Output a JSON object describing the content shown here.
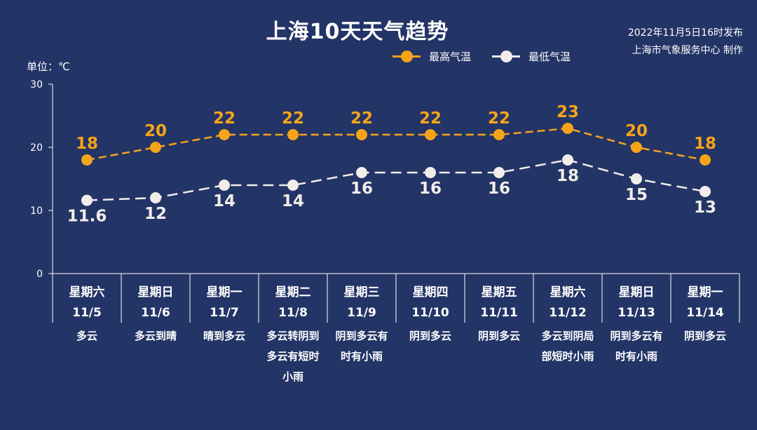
{
  "header": {
    "title": "上海10天天气趋势",
    "publish_line1": "2022年11月5日16时发布",
    "publish_line2": "上海市气象服务中心 制作"
  },
  "colors": {
    "high": "#F5A41A",
    "low": "#F2EDEB",
    "background": "#233466"
  },
  "chart_data": {
    "type": "line",
    "unit_label": "单位：℃",
    "ylim": [
      0,
      30
    ],
    "yticks": [
      "0",
      "10",
      "20",
      "30"
    ],
    "legend_position": "top-center",
    "categories": [
      {
        "day": "星期六",
        "date": "11/5",
        "weather": [
          "多云"
        ]
      },
      {
        "day": "星期日",
        "date": "11/6",
        "weather": [
          "多云到晴"
        ]
      },
      {
        "day": "星期一",
        "date": "11/7",
        "weather": [
          "晴到多云"
        ]
      },
      {
        "day": "星期二",
        "date": "11/8",
        "weather": [
          "多云转阴到",
          "多云有短时",
          "小雨"
        ]
      },
      {
        "day": "星期三",
        "date": "11/9",
        "weather": [
          "阴到多云有",
          "时有小雨"
        ]
      },
      {
        "day": "星期四",
        "date": "11/10",
        "weather": [
          "阴到多云"
        ]
      },
      {
        "day": "星期五",
        "date": "11/11",
        "weather": [
          "阴到多云"
        ]
      },
      {
        "day": "星期六",
        "date": "11/12",
        "weather": [
          "多云到阴局",
          "部短时小雨"
        ]
      },
      {
        "day": "星期日",
        "date": "11/13",
        "weather": [
          "阴到多云有",
          "时有小雨"
        ]
      },
      {
        "day": "星期一",
        "date": "11/14",
        "weather": [
          "阴到多云"
        ]
      }
    ],
    "series": [
      {
        "name": "最高气温",
        "values": [
          18,
          20,
          22,
          22,
          22,
          22,
          22,
          23,
          20,
          18
        ],
        "labels": [
          "18",
          "20",
          "22",
          "22",
          "22",
          "22",
          "22",
          "23",
          "20",
          "18"
        ]
      },
      {
        "name": "最低气温",
        "values": [
          11.6,
          12,
          14,
          14,
          16,
          16,
          16,
          18,
          15,
          13
        ],
        "labels": [
          "11.6",
          "12",
          "14",
          "14",
          "16",
          "16",
          "16",
          "18",
          "15",
          "13"
        ]
      }
    ]
  }
}
